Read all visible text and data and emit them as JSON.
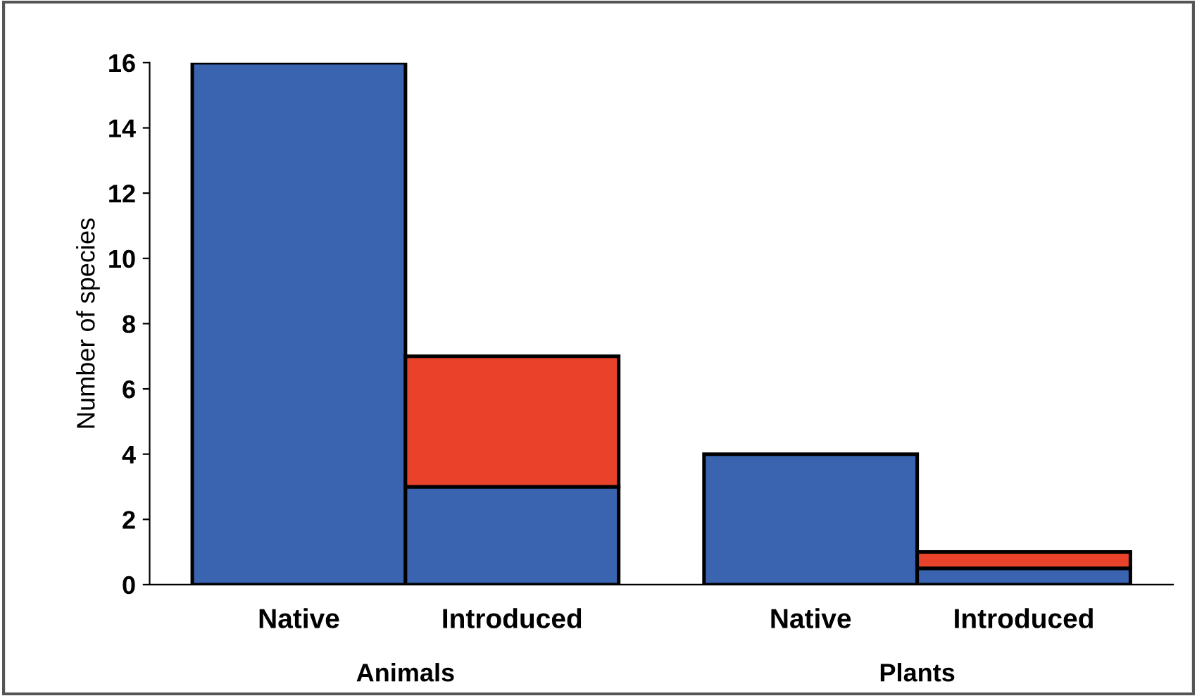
{
  "chart_data": {
    "type": "bar",
    "ylabel": "Number of species",
    "categories": [
      "Native",
      "Introduced",
      "Native",
      "Introduced"
    ],
    "stacked": true,
    "series": [
      {
        "color": "#3a63b0",
        "values": [
          16,
          3,
          4,
          0.5
        ]
      },
      {
        "color": "#e8432a",
        "values": [
          null,
          4,
          null,
          0.5
        ]
      }
    ],
    "ylim": [
      0,
      16
    ],
    "yticks": [
      0,
      2,
      4,
      6,
      8,
      10,
      12,
      14,
      16
    ],
    "annotations": [
      "Animals",
      "Plants"
    ],
    "grid": false,
    "legend": false
  }
}
